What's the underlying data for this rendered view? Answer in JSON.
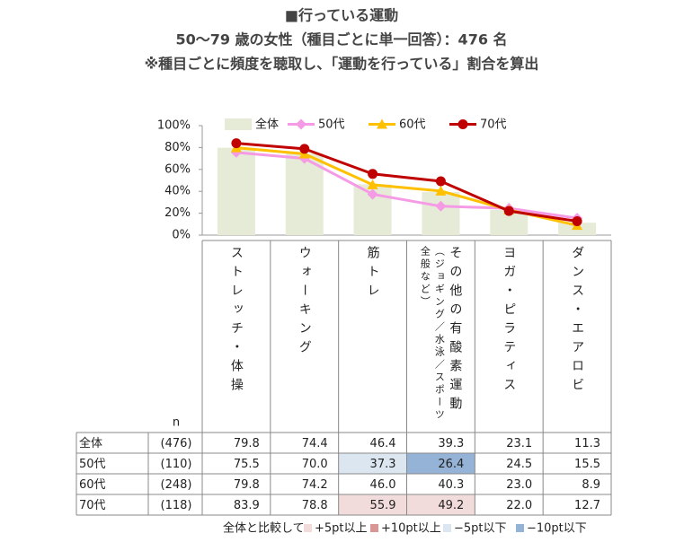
{
  "titles": [
    "■行っている運動",
    "50～79 歳の女性（種目ごとに単一回答）：476 名",
    "※種目ごとに頻度を聴取し、「運動を行っている」割合を算出"
  ],
  "chart_data": {
    "type": "combo",
    "categories": [
      "ストレッチ・体操",
      "ウォーキング",
      "筋トレ",
      "その他の有酸素運動",
      "ヨガ・ピラティス",
      "ダンス・エアロビ"
    ],
    "category_notes": [
      null,
      null,
      null,
      "（ジョギング／水泳／スポーツ全般など）",
      null,
      null
    ],
    "series": [
      {
        "name": "全体",
        "type": "bar",
        "color": "#e6ebd7",
        "n": "(476)",
        "values": [
          79.8,
          74.4,
          46.4,
          39.3,
          23.1,
          11.3
        ],
        "value_labels": [
          "79.8",
          "74.4",
          "46.4",
          "39.3",
          "23.1",
          "11.3"
        ],
        "highlights": [
          null,
          null,
          null,
          null,
          null,
          null
        ]
      },
      {
        "name": "50代",
        "type": "line",
        "marker": "diamond",
        "color": "#f59be6",
        "n": "(110)",
        "values": [
          75.5,
          70.0,
          37.3,
          26.4,
          24.5,
          15.5
        ],
        "value_labels": [
          "75.5",
          "70.0",
          "37.3",
          "26.4",
          "24.5",
          "15.5"
        ],
        "highlights": [
          null,
          null,
          "#dce6f1",
          "#95b3d7",
          null,
          null
        ]
      },
      {
        "name": "60代",
        "type": "line",
        "marker": "triangle",
        "color": "#ffc000",
        "n": "(248)",
        "values": [
          79.8,
          74.2,
          46.0,
          40.3,
          23.0,
          8.9
        ],
        "value_labels": [
          "79.8",
          "74.2",
          "46.0",
          "40.3",
          "23.0",
          "8.9"
        ],
        "highlights": [
          null,
          null,
          null,
          null,
          null,
          null
        ]
      },
      {
        "name": "70代",
        "type": "line",
        "marker": "circle",
        "color": "#c00000",
        "n": "(118)",
        "values": [
          83.9,
          78.8,
          55.9,
          49.2,
          22.0,
          12.7
        ],
        "value_labels": [
          "83.9",
          "78.8",
          "55.9",
          "49.2",
          "22.0",
          "12.7"
        ],
        "highlights": [
          null,
          null,
          "#f2dcdb",
          "#f2dcdb",
          null,
          null
        ]
      }
    ],
    "ylim": [
      0,
      100
    ],
    "yticks": [
      {
        "value": 0,
        "label": "0%"
      },
      {
        "value": 20,
        "label": "20%"
      },
      {
        "value": 40,
        "label": "40%"
      },
      {
        "value": 60,
        "label": "60%"
      },
      {
        "value": 80,
        "label": "80%"
      },
      {
        "value": 100,
        "label": "100%"
      }
    ],
    "n_label": "n"
  },
  "comparison_legend": {
    "title": "全体と比較して",
    "items": [
      {
        "label": "+5pt以上",
        "color": "#f2dcdb"
      },
      {
        "label": "+10pt以上",
        "color": "#da9694"
      },
      {
        "label": "−5pt以下",
        "color": "#dce6f1"
      },
      {
        "label": "−10pt以下",
        "color": "#95b3d7"
      }
    ]
  }
}
